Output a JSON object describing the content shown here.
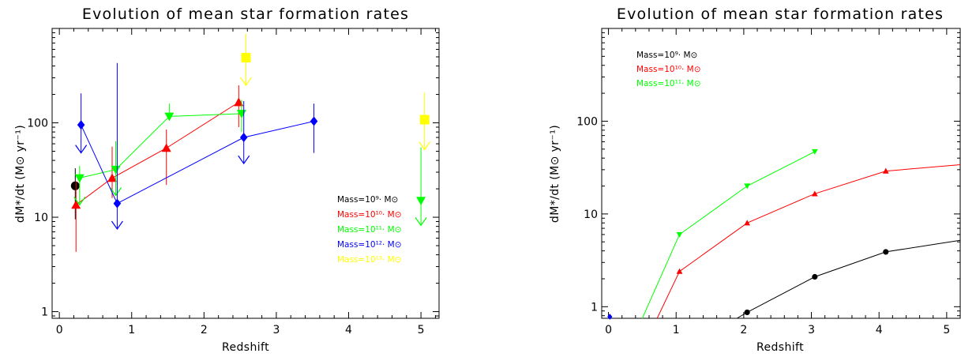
{
  "colors": {
    "black": "#000000",
    "red": "#ff0000",
    "green": "#00ff00",
    "blue": "#0000ff",
    "yellow": "#ffff00"
  },
  "chart_data": [
    {
      "type": "scatter",
      "title": "Evolution of mean star formation rates",
      "xlabel": "Redshift",
      "ylabel": "dM*/dt (M⊙ yr⁻¹)",
      "xlim": [
        -0.1,
        5.25
      ],
      "ylim": [
        0.85,
        1000
      ],
      "ylog": true,
      "xticks": [
        0,
        1,
        2,
        3,
        4,
        5
      ],
      "yticks": [
        1,
        10,
        100
      ],
      "ytick_labels": [
        "1",
        "10",
        "100"
      ],
      "grid": false,
      "legend_position": "center-right",
      "legend": [
        {
          "label": "Mass=10⁹· M⊙",
          "color": "#000000"
        },
        {
          "label": "Mass=10¹⁰· M⊙",
          "color": "#ff0000"
        },
        {
          "label": "Mass=10¹¹· M⊙",
          "color": "#00ff00"
        },
        {
          "label": "Mass=10¹²· M⊙",
          "color": "#0000ff"
        },
        {
          "label": "Mass=10¹³· M⊙",
          "color": "#ffff00"
        }
      ],
      "series": [
        {
          "color": "#000000",
          "marker": "circle",
          "connected": false,
          "points": [
            {
              "x": 0.22,
              "y": 21.5,
              "lo": 9.5,
              "hi": 33
            }
          ]
        },
        {
          "color": "#ff0000",
          "marker": "triangle-up",
          "connected": true,
          "points": [
            {
              "x": 0.23,
              "y": 13.5,
              "lo": 4.3,
              "hi": 24
            },
            {
              "x": 0.73,
              "y": 26,
              "lo": 16,
              "hi": 56
            },
            {
              "x": 1.48,
              "y": 54,
              "lo": 22,
              "hi": 85
            },
            {
              "x": 2.48,
              "y": 165,
              "lo": 90,
              "hi": 250
            }
          ]
        },
        {
          "color": "#00ff00",
          "marker": "triangle-down",
          "connected": true,
          "points": [
            {
              "x": 0.28,
              "y": 26,
              "lo": 13.5,
              "hi": 35,
              "upper_limit": true
            },
            {
              "x": 0.78,
              "y": 32,
              "lo": 17,
              "hi": 64,
              "upper_limit": true
            },
            {
              "x": 1.52,
              "y": 117,
              "hi": 160
            },
            {
              "x": 2.52,
              "y": 125,
              "lo": 80,
              "hi": 175
            }
          ]
        },
        {
          "color": "#0000ff",
          "marker": "diamond",
          "connected": true,
          "points": [
            {
              "x": 0.3,
              "y": 95,
              "lo": 48,
              "hi": 205,
              "upper_limit": true
            },
            {
              "x": 0.8,
              "y": 14,
              "lo": 7.5,
              "hi": 430,
              "upper_limit": true
            },
            {
              "x": 2.55,
              "y": 70,
              "lo": 37,
              "hi": 170,
              "upper_limit": true
            },
            {
              "x": 3.52,
              "y": 104,
              "lo": 48,
              "hi": 160
            }
          ]
        },
        {
          "color": "#ffff00",
          "marker": "square",
          "connected": false,
          "points": [
            {
              "x": 2.58,
              "y": 490,
              "lo": 250,
              "hi": 880,
              "upper_limit": true
            },
            {
              "x": 5.05,
              "y": 108,
              "lo": 52,
              "hi": 210,
              "upper_limit": true
            }
          ]
        },
        {
          "color": "#00ff00",
          "marker": "triangle-down",
          "connected": false,
          "points": [
            {
              "x": 5.0,
              "y": 15,
              "lo": 8.2,
              "hi": 55,
              "upper_limit": true
            }
          ]
        }
      ]
    },
    {
      "type": "line",
      "title": "Evolution of mean star formation rates",
      "xlabel": "Redshift",
      "ylabel": "dM*/dt (M⊙ yr⁻¹)",
      "xlim": [
        -0.1,
        5.2
      ],
      "ylim": [
        0.75,
        1000
      ],
      "ylog": true,
      "xticks": [
        0,
        1,
        2,
        3,
        4,
        5
      ],
      "yticks": [
        1,
        10,
        100
      ],
      "ytick_labels": [
        "1",
        "10",
        "100"
      ],
      "grid": false,
      "legend_position": "top-left",
      "legend": [
        {
          "label": "Mass=10⁹· M⊙",
          "color": "#000000"
        },
        {
          "label": "Mass=10¹⁰· M⊙",
          "color": "#ff0000"
        },
        {
          "label": "Mass=10¹¹· M⊙",
          "color": "#00ff00"
        }
      ],
      "series": [
        {
          "color": "#000000",
          "marker": "circle",
          "points": [
            {
              "x": 1.9,
              "y": 0.75,
              "marker": false
            },
            {
              "x": 2.05,
              "y": 0.87
            },
            {
              "x": 3.05,
              "y": 2.1
            },
            {
              "x": 4.1,
              "y": 3.9
            },
            {
              "x": 5.2,
              "y": 5.2,
              "marker": false
            }
          ]
        },
        {
          "color": "#ff0000",
          "marker": "triangle-up",
          "points": [
            {
              "x": 0.72,
              "y": 0.75,
              "marker": false
            },
            {
              "x": 1.05,
              "y": 2.4
            },
            {
              "x": 2.05,
              "y": 8
            },
            {
              "x": 3.05,
              "y": 16.5
            },
            {
              "x": 4.1,
              "y": 29
            },
            {
              "x": 5.2,
              "y": 34,
              "marker": false
            }
          ]
        },
        {
          "color": "#00ff00",
          "marker": "triangle-down",
          "points": [
            {
              "x": 0.5,
              "y": 0.75,
              "marker": false
            },
            {
              "x": 1.05,
              "y": 6
            },
            {
              "x": 2.05,
              "y": 20
            },
            {
              "x": 3.05,
              "y": 47
            }
          ]
        },
        {
          "color": "#0000ff",
          "marker": "diamond",
          "points": [
            {
              "x": 0.02,
              "y": 0.78
            }
          ]
        }
      ]
    }
  ]
}
